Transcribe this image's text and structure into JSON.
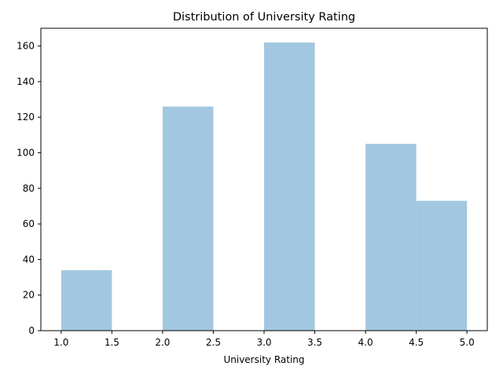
{
  "chart_data": {
    "type": "bar",
    "title": "Distribution of University Rating",
    "xlabel": "University Rating",
    "ylabel": "",
    "bins": [
      {
        "start": 1.0,
        "end": 1.5,
        "count": 34
      },
      {
        "start": 1.5,
        "end": 2.0,
        "count": 0
      },
      {
        "start": 2.0,
        "end": 2.5,
        "count": 126
      },
      {
        "start": 2.5,
        "end": 3.0,
        "count": 0
      },
      {
        "start": 3.0,
        "end": 3.5,
        "count": 162
      },
      {
        "start": 3.5,
        "end": 4.0,
        "count": 0
      },
      {
        "start": 4.0,
        "end": 4.5,
        "count": 105
      },
      {
        "start": 4.5,
        "end": 5.0,
        "count": 73
      }
    ],
    "xlim": [
      0.8,
      5.2
    ],
    "ylim": [
      0,
      170
    ],
    "xticks": [
      "1.0",
      "1.5",
      "2.0",
      "2.5",
      "3.0",
      "3.5",
      "4.0",
      "4.5",
      "5.0"
    ],
    "yticks": [
      "0",
      "20",
      "40",
      "60",
      "80",
      "100",
      "120",
      "140",
      "160"
    ],
    "grid": false,
    "bar_color": "#a3c7e0"
  }
}
